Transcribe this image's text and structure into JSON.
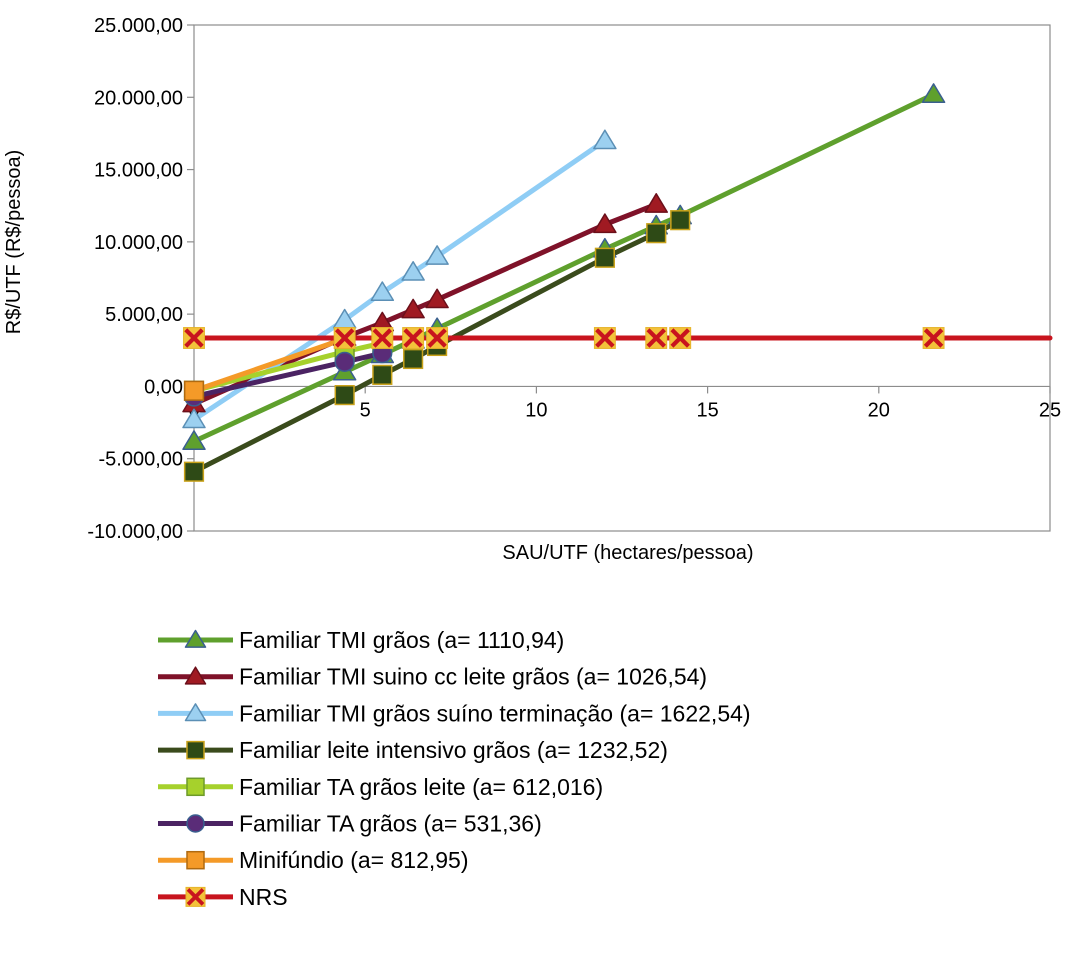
{
  "chart_data": {
    "type": "line",
    "title": "",
    "xlabel": "SAU/UTF (hectares/pessoa)",
    "ylabel": "R$/UTF  (R$/pessoa)",
    "xlim": [
      0,
      25
    ],
    "ylim": [
      -10000,
      25000
    ],
    "x_ticks": [
      0,
      5,
      10,
      15,
      20,
      25
    ],
    "x_tick_labels": [
      "0",
      "5",
      "10",
      "15",
      "20",
      "25"
    ],
    "y_ticks": [
      -10000,
      -5000,
      0,
      5000,
      10000,
      15000,
      20000,
      25000
    ],
    "y_tick_labels": [
      "-10.000,00",
      "-5.000,00",
      "0,00",
      "5.000,00",
      "10.000,00",
      "15.000,00",
      "20.000,00",
      "25.000,00"
    ],
    "grid": false,
    "legend_position": "bottom",
    "series": [
      {
        "name": "Familiar TMI grãos (a= 1110,94)",
        "color": "#5fa02d",
        "marker": "triangle",
        "marker_fill": "#5fa02d",
        "marker_stroke": "#3a5f8f",
        "points": [
          [
            0,
            -3800
          ],
          [
            4.4,
            1000
          ],
          [
            5.5,
            2200
          ],
          [
            6.4,
            3200
          ],
          [
            7.1,
            4000
          ],
          [
            12,
            9500
          ],
          [
            13.5,
            11100
          ],
          [
            14.2,
            11800
          ],
          [
            21.6,
            20200
          ]
        ]
      },
      {
        "name": "Familiar TMI suino cc leite grãos (a= 1026,54)",
        "color": "#7f1229",
        "marker": "triangle",
        "marker_fill": "#a01a22",
        "marker_stroke": "#6b0f1a",
        "points": [
          [
            0,
            -1200
          ],
          [
            4.4,
            3400
          ],
          [
            5.5,
            4400
          ],
          [
            6.4,
            5300
          ],
          [
            7.1,
            6000
          ],
          [
            12,
            11200
          ],
          [
            13.5,
            12600
          ]
        ]
      },
      {
        "name": "Familiar TMI grãos suíno terminação (a= 1622,54)",
        "color": "#8fcdf5",
        "marker": "triangle",
        "marker_fill": "#9cd0f0",
        "marker_stroke": "#5b8fb5",
        "points": [
          [
            0,
            -2300
          ],
          [
            4.4,
            4600
          ],
          [
            5.5,
            6500
          ],
          [
            6.4,
            7900
          ],
          [
            7.1,
            9000
          ],
          [
            12,
            17000
          ]
        ]
      },
      {
        "name": "Familiar leite intensivo grãos (a= 1232,52)",
        "color": "#3a4b1c",
        "marker": "square",
        "marker_fill": "#2e4a16",
        "marker_stroke": "#c9a21a",
        "points": [
          [
            0,
            -5900
          ],
          [
            4.4,
            -600
          ],
          [
            5.5,
            800
          ],
          [
            6.4,
            1900
          ],
          [
            7.1,
            2800
          ],
          [
            12,
            8900
          ],
          [
            13.5,
            10600
          ],
          [
            14.2,
            11500
          ]
        ]
      },
      {
        "name": "Familiar TA grãos leite (a= 612,016)",
        "color": "#a6d12c",
        "marker": "square",
        "marker_fill": "#a6d12c",
        "marker_stroke": "#6d9a2a",
        "points": [
          [
            0,
            -300
          ],
          [
            4.4,
            2400
          ],
          [
            5.5,
            3000
          ]
        ]
      },
      {
        "name": "Familiar TA grãos (a= 531,36)",
        "color": "#4b2363",
        "marker": "circle",
        "marker_fill": "#5a2c78",
        "marker_stroke": "#3a5f8f",
        "points": [
          [
            0,
            -700
          ],
          [
            4.4,
            1700
          ],
          [
            5.5,
            2300
          ]
        ]
      },
      {
        "name": "Minifúndio (a= 812,95)",
        "color": "#f49a28",
        "marker": "square",
        "marker_fill": "#f49a28",
        "marker_stroke": "#b06a10",
        "points": [
          [
            0,
            -300
          ],
          [
            4.4,
            3300
          ]
        ]
      },
      {
        "name": "NRS",
        "color": "#c8141e",
        "marker": "x-square",
        "marker_fill": "#c8141e",
        "marker_stroke": "#f3c23a",
        "points": [
          [
            0,
            3350
          ],
          [
            4.4,
            3350
          ],
          [
            5.5,
            3350
          ],
          [
            6.4,
            3350
          ],
          [
            7.1,
            3350
          ],
          [
            12,
            3350
          ],
          [
            13.5,
            3350
          ],
          [
            14.2,
            3350
          ],
          [
            21.6,
            3350
          ],
          [
            25,
            3350
          ]
        ],
        "marker_points_count": 9
      }
    ]
  }
}
